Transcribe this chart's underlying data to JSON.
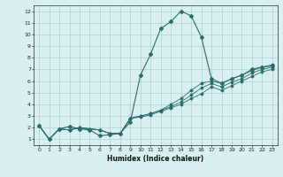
{
  "xlabel": "Humidex (Indice chaleur)",
  "ylabel": "",
  "bg_color": "#d8f0f0",
  "grid_color": "#b0d0d0",
  "line_color": "#2a6b6b",
  "xlim": [
    -0.5,
    23.5
  ],
  "ylim": [
    0.5,
    12.5
  ],
  "xticks": [
    0,
    1,
    2,
    3,
    4,
    5,
    6,
    7,
    8,
    9,
    10,
    11,
    12,
    13,
    14,
    15,
    16,
    17,
    18,
    19,
    20,
    21,
    22,
    23
  ],
  "yticks": [
    1,
    2,
    3,
    4,
    5,
    6,
    7,
    8,
    9,
    10,
    11,
    12
  ],
  "series": [
    {
      "x": [
        0,
        1,
        2,
        3,
        4,
        5,
        6,
        7,
        8,
        9,
        10,
        11,
        12,
        13,
        14,
        15,
        16,
        17,
        18,
        19,
        20,
        21,
        22,
        23
      ],
      "y": [
        2.2,
        1.0,
        1.9,
        2.1,
        1.9,
        1.8,
        1.3,
        1.4,
        1.5,
        2.5,
        6.5,
        8.3,
        10.5,
        11.1,
        12.0,
        11.6,
        9.8,
        6.2,
        5.8,
        6.2,
        6.5,
        7.0,
        7.2,
        7.3
      ],
      "marker": "D",
      "markersize": 2.0,
      "linewidth": 0.8
    },
    {
      "x": [
        0,
        1,
        2,
        3,
        4,
        5,
        6,
        7,
        8,
        9,
        10,
        11,
        12,
        13,
        14,
        15,
        16,
        17,
        18,
        19,
        20,
        21,
        22,
        23
      ],
      "y": [
        2.2,
        1.0,
        1.9,
        1.8,
        2.0,
        1.9,
        1.8,
        1.5,
        1.5,
        2.8,
        3.0,
        3.2,
        3.5,
        3.8,
        4.2,
        4.8,
        5.4,
        5.8,
        5.5,
        5.9,
        6.2,
        6.7,
        7.0,
        7.2
      ],
      "marker": "D",
      "markersize": 1.5,
      "linewidth": 0.6
    },
    {
      "x": [
        0,
        1,
        2,
        3,
        4,
        5,
        6,
        7,
        8,
        9,
        10,
        11,
        12,
        13,
        14,
        15,
        16,
        17,
        18,
        19,
        20,
        21,
        22,
        23
      ],
      "y": [
        2.2,
        1.0,
        1.9,
        1.8,
        2.0,
        1.9,
        1.8,
        1.5,
        1.5,
        2.8,
        3.0,
        3.2,
        3.5,
        4.0,
        4.5,
        5.2,
        5.8,
        6.0,
        5.8,
        6.2,
        6.5,
        6.9,
        7.2,
        7.4
      ],
      "marker": "D",
      "markersize": 1.5,
      "linewidth": 0.6
    },
    {
      "x": [
        0,
        1,
        2,
        3,
        4,
        5,
        6,
        7,
        8,
        9,
        10,
        11,
        12,
        13,
        14,
        15,
        16,
        17,
        18,
        19,
        20,
        21,
        22,
        23
      ],
      "y": [
        2.2,
        1.0,
        1.9,
        1.8,
        2.0,
        1.9,
        1.8,
        1.5,
        1.5,
        2.8,
        2.9,
        3.1,
        3.4,
        3.7,
        4.0,
        4.5,
        4.9,
        5.5,
        5.2,
        5.6,
        6.0,
        6.4,
        6.8,
        7.0
      ],
      "marker": "D",
      "markersize": 1.5,
      "linewidth": 0.6
    }
  ]
}
